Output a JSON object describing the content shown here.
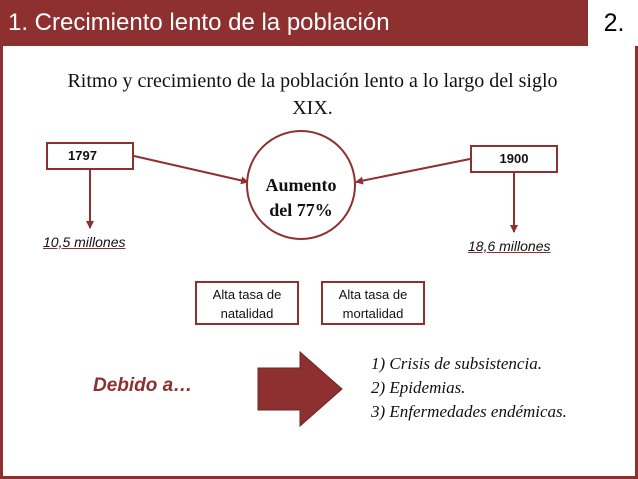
{
  "header": {
    "title": "1. Crecimiento lento de la población",
    "slide_number": "2."
  },
  "subtitle": "Ritmo y crecimiento de la población lento a lo largo del siglo XIX.",
  "left": {
    "year": "1797",
    "value": "10,5 millones"
  },
  "right": {
    "year": "1900",
    "value": "18,6 millones"
  },
  "center": {
    "line1": "Aumento",
    "line2": "del 77%"
  },
  "factors": {
    "natalidad": [
      "Alta tasa de",
      "natalidad"
    ],
    "mortalidad": [
      "Alta tasa de",
      "mortalidad"
    ]
  },
  "debido": "Debido a…",
  "causes": [
    "1) Crisis de subsistencia.",
    "2) Epidemias.",
    "3) Enfermedades endémicas."
  ],
  "colors": {
    "accent": "#8e3030",
    "text": "#111111"
  }
}
